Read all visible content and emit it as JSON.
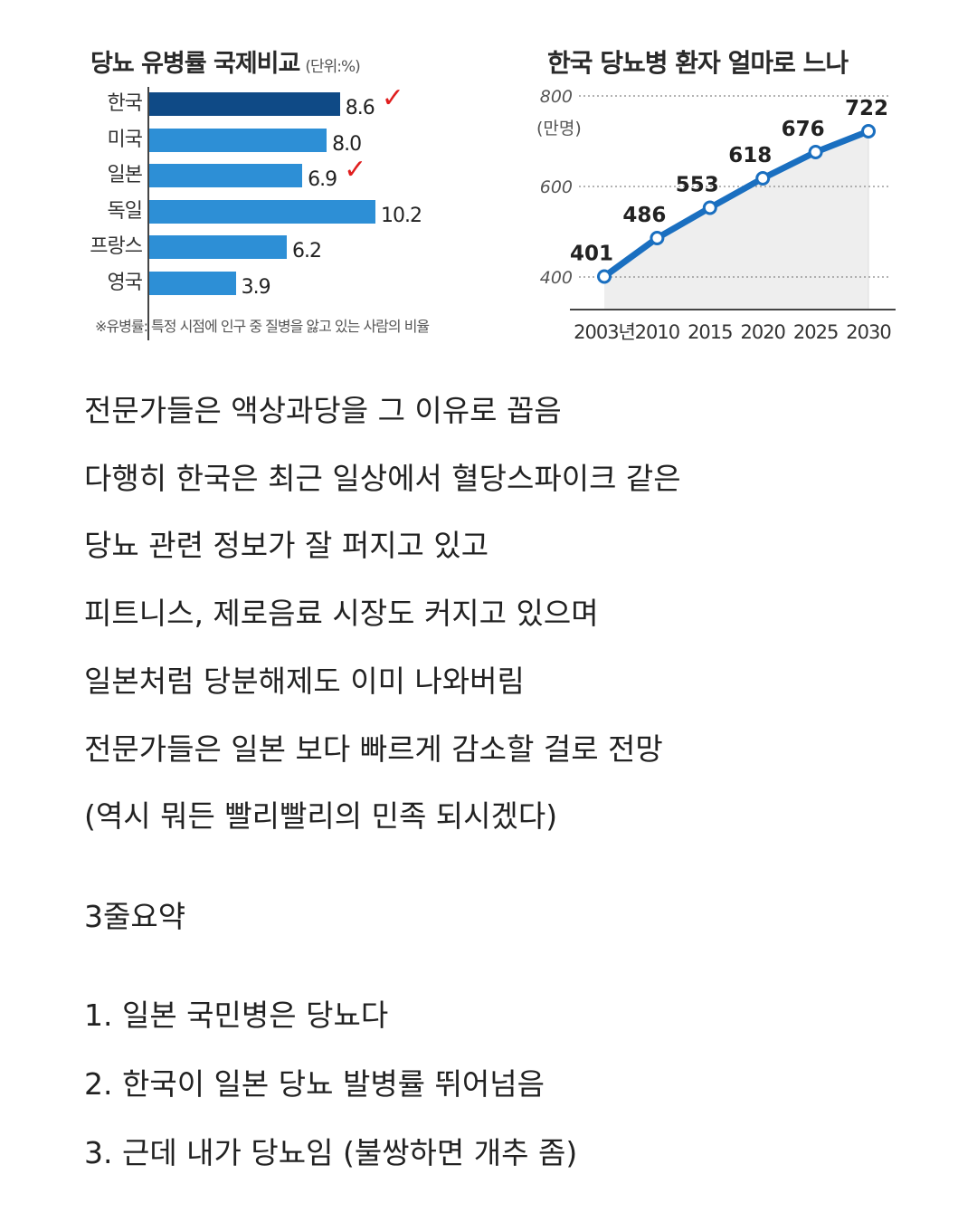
{
  "chart_data": [
    {
      "type": "bar",
      "title": "당뇨 유병률 국제비교",
      "unit_label": "(단위:%)",
      "categories": [
        "한국",
        "미국",
        "일본",
        "독일",
        "프랑스",
        "영국"
      ],
      "values": [
        8.6,
        8.0,
        6.9,
        10.2,
        6.2,
        3.9
      ],
      "value_labels": [
        "8.6",
        "8.0",
        "6.9",
        "10.2",
        "6.2",
        "3.9"
      ],
      "highlight": [
        true,
        false,
        false,
        false,
        false,
        false
      ],
      "checkmarks": [
        "한국",
        "일본"
      ],
      "check_glyph": "✓",
      "colors": {
        "highlight": "#0f4a86",
        "default": "#2d8fd6",
        "check": "#e01e1e"
      },
      "note": "※유병률: 특정 시점에 인구 중 질병을 앓고 있는 사람의 비율",
      "xlim": [
        0,
        10.2
      ]
    },
    {
      "type": "line",
      "title": "한국 당뇨병 환자 얼마로 느나",
      "ylabel": "(만명)",
      "x": [
        "2003년",
        "2010",
        "2015",
        "2020",
        "2025",
        "2030"
      ],
      "values": [
        401,
        486,
        553,
        618,
        676,
        722
      ],
      "value_labels": [
        "401",
        "486",
        "553",
        "618",
        "676",
        "722"
      ],
      "y_ticks": [
        "400",
        "600",
        "800"
      ],
      "ylim": [
        400,
        800
      ],
      "grid": "dotted horizontal",
      "colors": {
        "line": "#1a6fc0",
        "marker_fill": "#ffffff",
        "area": "#eeeeee"
      }
    }
  ],
  "body": {
    "paragraph1": [
      "전문가들은 액상과당을 그 이유로 꼽음",
      "다행히 한국은 최근 일상에서 혈당스파이크 같은",
      "당뇨 관련 정보가 잘 퍼지고 있고",
      "피트니스, 제로음료 시장도 커지고 있으며",
      "일본처럼 당분해제도 이미 나와버림",
      "전문가들은 일본 보다 빠르게 감소할 걸로 전망",
      "(역시 뭐든 빨리빨리의 민족 되시겠다)"
    ],
    "summary_title": "3줄요약",
    "summary": [
      "1. 일본 국민병은 당뇨다",
      "2. 한국이 일본 당뇨 발병률 뛰어넘음",
      "3. 근데 내가 당뇨임 (불쌍하면 개추 좀)"
    ]
  }
}
